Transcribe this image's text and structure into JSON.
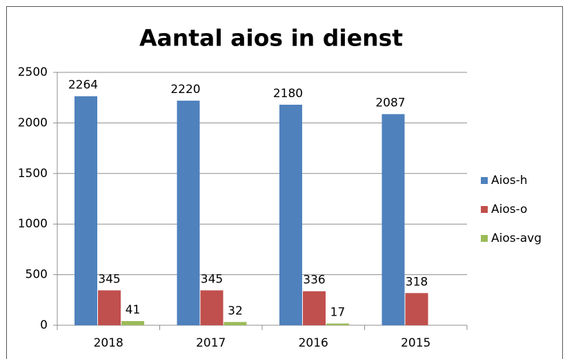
{
  "chart_data": {
    "type": "bar",
    "title": "Aantal aios in dienst",
    "categories": [
      "2018",
      "2017",
      "2016",
      "2015"
    ],
    "series": [
      {
        "name": "Aios-h",
        "color": "#4f81bd",
        "values": [
          2264,
          2220,
          2180,
          2087
        ]
      },
      {
        "name": "Aios-o",
        "color": "#c0504d",
        "values": [
          345,
          345,
          336,
          318
        ]
      },
      {
        "name": "Aios-avg",
        "color": "#9bbb59",
        "values": [
          41,
          32,
          17,
          null
        ]
      }
    ],
    "ylim": [
      0,
      2500
    ],
    "yticks": [
      0,
      500,
      1000,
      1500,
      2000,
      2500
    ],
    "grid": true,
    "legend": "right"
  }
}
